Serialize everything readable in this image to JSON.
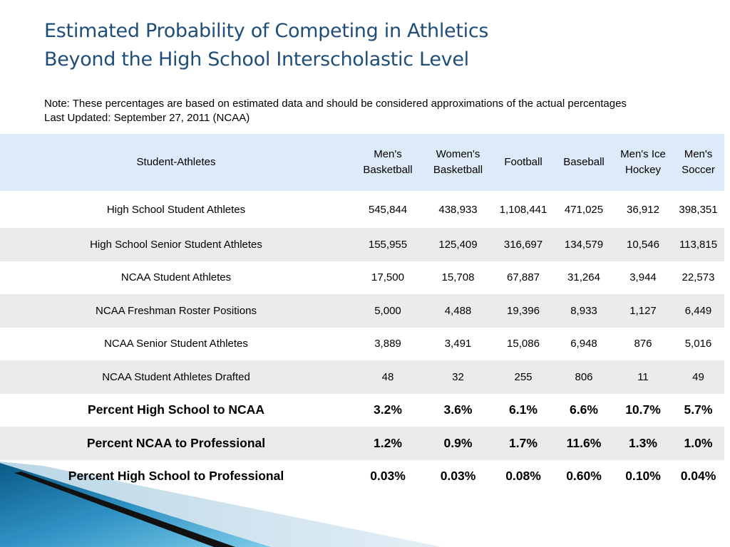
{
  "title": {
    "line1": "Estimated Probability of Competing in Athletics",
    "line2": "Beyond the High School Interscholastic Level"
  },
  "note": {
    "line1": "Note: These percentages are based on estimated data and should be considered approximations of the actual percentages",
    "line2": "Last Updated: September 27, 2011 (NCAA)"
  },
  "table": {
    "headers": [
      "Student-Athletes",
      "Men's Basketball",
      "Women's Basketball",
      "Football",
      "Baseball",
      "Men's Ice Hockey",
      "Men's Soccer"
    ],
    "rows": [
      {
        "label": "High School Student Athletes",
        "values": [
          "545,844",
          "438,933",
          "1,108,441",
          "471,025",
          "36,912",
          "398,351"
        ]
      },
      {
        "label": "High School Senior Student Athletes",
        "values": [
          "155,955",
          "125,409",
          "316,697",
          "134,579",
          "10,546",
          "113,815"
        ]
      },
      {
        "label": "NCAA Student Athletes",
        "values": [
          "17,500",
          "15,708",
          "67,887",
          "31,264",
          "3,944",
          "22,573"
        ]
      },
      {
        "label": "NCAA Freshman Roster Positions",
        "values": [
          "5,000",
          "4,488",
          "19,396",
          "8,933",
          "1,127",
          "6,449"
        ]
      },
      {
        "label": "NCAA Senior Student Athletes",
        "values": [
          "3,889",
          "3,491",
          "15,086",
          "6,948",
          "876",
          "5,016"
        ]
      },
      {
        "label": "NCAA Student Athletes Drafted",
        "values": [
          "48",
          "32",
          "255",
          "806",
          "11",
          "49"
        ]
      },
      {
        "label": "Percent High School to NCAA",
        "values": [
          "3.2%",
          "3.6%",
          "6.1%",
          "6.6%",
          "10.7%",
          "5.7%"
        ]
      },
      {
        "label": "Percent NCAA to Professional",
        "values": [
          "1.2%",
          "0.9%",
          "1.7%",
          "11.6%",
          "1.3%",
          "1.0%"
        ]
      },
      {
        "label": "Percent High School to Professional",
        "values": [
          "0.03%",
          "0.03%",
          "0.08%",
          "0.60%",
          "0.10%",
          "0.04%"
        ]
      }
    ]
  },
  "colors": {
    "title": "#1f4e79",
    "header_bg": "#ddeaf9",
    "alt_row_bg": "#ebebeb",
    "deco_dark": "#0a5a86",
    "deco_light": "#5bb8dc"
  }
}
